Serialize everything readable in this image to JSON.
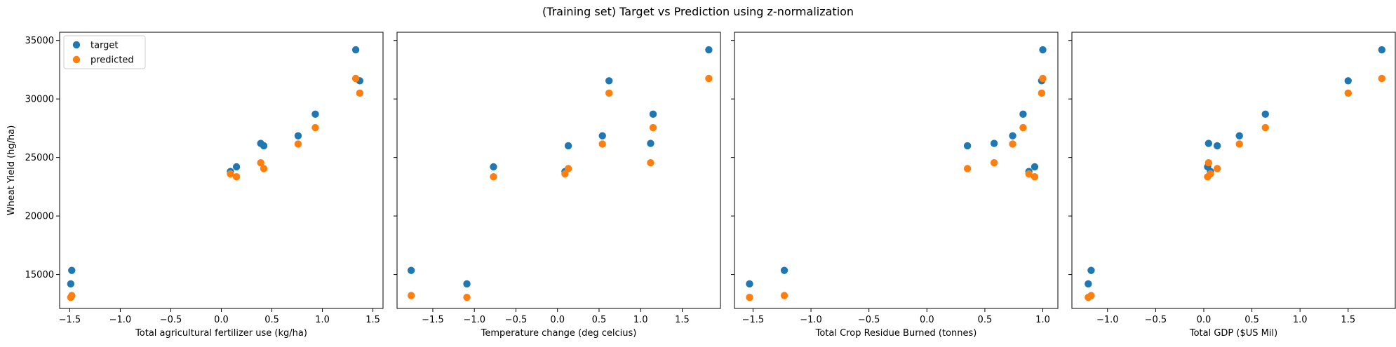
{
  "suptitle": "(Training set) Target vs Prediction using z-normalization",
  "colors": {
    "target": "#1f77b4",
    "predicted": "#ff7f0e",
    "axis": "#000000"
  },
  "legend": {
    "placement": "upper-left",
    "entries": [
      "target",
      "predicted"
    ]
  },
  "chart_data": [
    {
      "type": "scatter",
      "xlabel": "Total agricultural fertilizer use (kg/ha)",
      "ylabel": "Wheat Yield (hg/ha)",
      "xlim": [
        -1.6,
        1.6
      ],
      "ylim": [
        12100,
        35700
      ],
      "xticks": [
        -1.5,
        -1.0,
        -0.5,
        0.0,
        0.5,
        1.0,
        1.5
      ],
      "xtick_labels": [
        "−1.5",
        "−1.0",
        "−0.5",
        "0.0",
        "0.5",
        "1.0",
        "1.5"
      ],
      "yticks": [
        15000,
        20000,
        25000,
        30000,
        35000
      ],
      "ytick_labels": [
        "15000",
        "20000",
        "25000",
        "30000",
        "35000"
      ],
      "grid": false,
      "show_legend": true,
      "series": [
        {
          "name": "target",
          "points": [
            [
              -1.48,
              15350
            ],
            [
              -1.49,
              14200
            ],
            [
              0.09,
              23800
            ],
            [
              0.15,
              24200
            ],
            [
              0.39,
              26200
            ],
            [
              0.42,
              26000
            ],
            [
              0.76,
              26850
            ],
            [
              0.93,
              28700
            ],
            [
              1.33,
              34200
            ],
            [
              1.37,
              31550
            ]
          ]
        },
        {
          "name": "predicted",
          "points": [
            [
              -1.48,
              13200
            ],
            [
              -1.49,
              13050
            ],
            [
              0.09,
              23600
            ],
            [
              0.15,
              23350
            ],
            [
              0.39,
              24550
            ],
            [
              0.42,
              24050
            ],
            [
              0.76,
              26150
            ],
            [
              0.93,
              27550
            ],
            [
              1.33,
              31750
            ],
            [
              1.37,
              30500
            ]
          ]
        }
      ]
    },
    {
      "type": "scatter",
      "xlabel": "Temperature change (deg celcius)",
      "ylabel": "",
      "xlim": [
        -1.93,
        1.96
      ],
      "ylim": [
        12100,
        35700
      ],
      "xticks": [
        -1.5,
        -1.0,
        -0.5,
        0.0,
        0.5,
        1.0,
        1.5
      ],
      "xtick_labels": [
        "−1.5",
        "−1.0",
        "−0.5",
        "0.0",
        "0.5",
        "1.0",
        "1.5"
      ],
      "yticks": [
        15000,
        20000,
        25000,
        30000,
        35000
      ],
      "ytick_labels": [
        "",
        "",
        "",
        "",
        ""
      ],
      "grid": false,
      "show_legend": false,
      "series": [
        {
          "name": "target",
          "points": [
            [
              -1.76,
              15350
            ],
            [
              -1.09,
              14200
            ],
            [
              -0.77,
              24200
            ],
            [
              0.09,
              23800
            ],
            [
              0.13,
              26000
            ],
            [
              0.54,
              26850
            ],
            [
              0.62,
              31550
            ],
            [
              1.12,
              26200
            ],
            [
              1.15,
              28700
            ],
            [
              1.82,
              34200
            ]
          ]
        },
        {
          "name": "predicted",
          "points": [
            [
              -1.76,
              13200
            ],
            [
              -1.09,
              13050
            ],
            [
              -0.77,
              23350
            ],
            [
              0.09,
              23600
            ],
            [
              0.13,
              24050
            ],
            [
              0.54,
              26150
            ],
            [
              0.62,
              30500
            ],
            [
              1.12,
              24550
            ],
            [
              1.15,
              27550
            ],
            [
              1.82,
              31750
            ]
          ]
        }
      ]
    },
    {
      "type": "scatter",
      "xlabel": "Total Crop Residue Burned (tonnes)",
      "ylabel": "",
      "xlim": [
        -1.66,
        1.13
      ],
      "ylim": [
        12100,
        35700
      ],
      "xticks": [
        -1.5,
        -1.0,
        -0.5,
        0.0,
        0.5,
        1.0
      ],
      "xtick_labels": [
        "−1.5",
        "−1.0",
        "−0.5",
        "0.0",
        "0.5",
        "1.0"
      ],
      "yticks": [
        15000,
        20000,
        25000,
        30000,
        35000
      ],
      "ytick_labels": [
        "",
        "",
        "",
        "",
        ""
      ],
      "grid": false,
      "show_legend": false,
      "series": [
        {
          "name": "target",
          "points": [
            [
              -1.53,
              14200
            ],
            [
              -1.23,
              15350
            ],
            [
              0.35,
              26000
            ],
            [
              0.58,
              26200
            ],
            [
              0.74,
              26850
            ],
            [
              0.83,
              28700
            ],
            [
              0.88,
              23800
            ],
            [
              0.93,
              24200
            ],
            [
              0.99,
              31550
            ],
            [
              1.0,
              34200
            ]
          ]
        },
        {
          "name": "predicted",
          "points": [
            [
              -1.53,
              13050
            ],
            [
              -1.23,
              13200
            ],
            [
              0.35,
              24050
            ],
            [
              0.58,
              24550
            ],
            [
              0.74,
              26150
            ],
            [
              0.83,
              27550
            ],
            [
              0.88,
              23600
            ],
            [
              0.93,
              23350
            ],
            [
              0.99,
              30500
            ],
            [
              1.0,
              31750
            ]
          ]
        }
      ]
    },
    {
      "type": "scatter",
      "xlabel": "Total GDP ($US Mil)",
      "ylabel": "",
      "xlim": [
        -1.37,
        1.99
      ],
      "ylim": [
        12100,
        35700
      ],
      "xticks": [
        -1.0,
        -0.5,
        0.0,
        0.5,
        1.0,
        1.5
      ],
      "xtick_labels": [
        "−1.0",
        "−0.5",
        "0.0",
        "0.5",
        "1.0",
        "1.5"
      ],
      "yticks": [
        15000,
        20000,
        25000,
        30000,
        35000
      ],
      "ytick_labels": [
        "",
        "",
        "",
        "",
        ""
      ],
      "grid": false,
      "show_legend": false,
      "series": [
        {
          "name": "target",
          "points": [
            [
              -1.2,
              14200
            ],
            [
              -1.17,
              15350
            ],
            [
              0.04,
              24200
            ],
            [
              0.05,
              26200
            ],
            [
              0.07,
              23800
            ],
            [
              0.14,
              26000
            ],
            [
              0.37,
              26850
            ],
            [
              0.64,
              28700
            ],
            [
              1.5,
              31550
            ],
            [
              1.85,
              34200
            ]
          ]
        },
        {
          "name": "predicted",
          "points": [
            [
              -1.2,
              13050
            ],
            [
              -1.17,
              13200
            ],
            [
              0.04,
              23350
            ],
            [
              0.05,
              24550
            ],
            [
              0.07,
              23600
            ],
            [
              0.14,
              24050
            ],
            [
              0.37,
              26150
            ],
            [
              0.64,
              27550
            ],
            [
              1.5,
              30500
            ],
            [
              1.85,
              31750
            ]
          ]
        }
      ]
    }
  ]
}
